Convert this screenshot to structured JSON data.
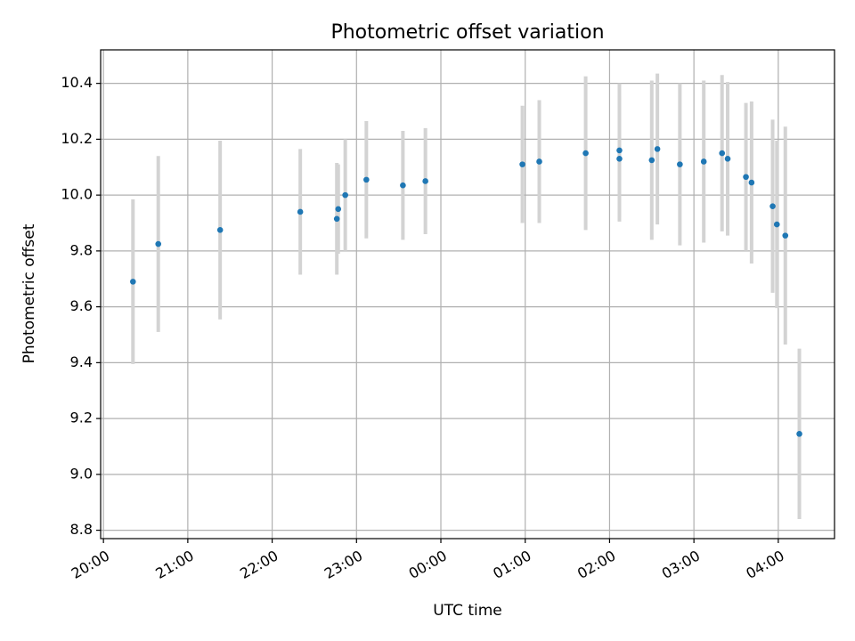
{
  "chart_data": {
    "type": "scatter",
    "title": "Photometric offset variation",
    "xlabel": "UTC time",
    "ylabel": "Photometric offset",
    "x_tick_labels": [
      "20:00",
      "21:00",
      "22:00",
      "23:00",
      "00:00",
      "01:00",
      "02:00",
      "03:00",
      "04:00"
    ],
    "y_ticks": [
      8.8,
      9.0,
      9.2,
      9.4,
      9.6,
      9.8,
      10.0,
      10.2,
      10.4
    ],
    "y_tick_labels": [
      "8.8",
      "9.0",
      "9.2",
      "9.4",
      "9.6",
      "9.8",
      "10.0",
      "10.2",
      "10.4"
    ],
    "xlim": [
      "19:58",
      "04:40"
    ],
    "ylim": [
      8.77,
      10.52
    ],
    "grid": true,
    "point_color": "#1f77b4",
    "errorbar_color": "#d3d3d3",
    "points": [
      {
        "t": "20:21",
        "y": 9.69,
        "err": 0.295
      },
      {
        "t": "20:39",
        "y": 9.825,
        "err": 0.315
      },
      {
        "t": "21:23",
        "y": 9.875,
        "err": 0.32
      },
      {
        "t": "22:20",
        "y": 9.94,
        "err": 0.225
      },
      {
        "t": "22:46",
        "y": 9.915,
        "err": 0.2
      },
      {
        "t": "22:47",
        "y": 9.95,
        "err": 0.16
      },
      {
        "t": "22:52",
        "y": 10.0,
        "err": 0.2
      },
      {
        "t": "23:07",
        "y": 10.055,
        "err": 0.21
      },
      {
        "t": "23:33",
        "y": 10.035,
        "err": 0.195
      },
      {
        "t": "23:49",
        "y": 10.05,
        "err": 0.19
      },
      {
        "t": "00:58",
        "y": 10.11,
        "err": 0.21
      },
      {
        "t": "01:10",
        "y": 10.12,
        "err": 0.22
      },
      {
        "t": "01:43",
        "y": 10.15,
        "err": 0.275
      },
      {
        "t": "02:07",
        "y": 10.16,
        "err": 0.24
      },
      {
        "t": "02:07",
        "y": 10.13,
        "err": 0.225
      },
      {
        "t": "02:30",
        "y": 10.125,
        "err": 0.285
      },
      {
        "t": "02:34",
        "y": 10.165,
        "err": 0.27
      },
      {
        "t": "02:50",
        "y": 10.11,
        "err": 0.29
      },
      {
        "t": "03:07",
        "y": 10.12,
        "err": 0.29
      },
      {
        "t": "03:20",
        "y": 10.15,
        "err": 0.28
      },
      {
        "t": "03:24",
        "y": 10.13,
        "err": 0.275
      },
      {
        "t": "03:37",
        "y": 10.065,
        "err": 0.265
      },
      {
        "t": "03:41",
        "y": 10.045,
        "err": 0.29
      },
      {
        "t": "03:56",
        "y": 9.96,
        "err": 0.31
      },
      {
        "t": "03:59",
        "y": 9.895,
        "err": 0.3
      },
      {
        "t": "04:05",
        "y": 9.855,
        "err": 0.39
      },
      {
        "t": "04:15",
        "y": 9.145,
        "err": 0.305
      }
    ]
  }
}
